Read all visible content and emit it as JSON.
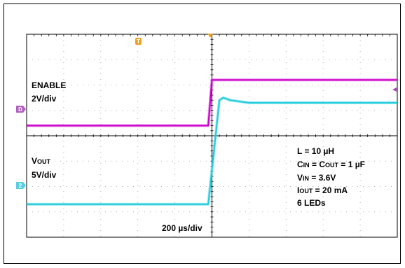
{
  "chart_data": {
    "type": "line",
    "title": "",
    "timebase": "200 µs/div",
    "divisions": {
      "x": 10,
      "y": 8
    },
    "xlim": [
      -1000,
      1000
    ],
    "x_unit": "µs",
    "trigger_marker": "T",
    "channel_markers": {
      "enable": "D",
      "vout": "2"
    },
    "series": [
      {
        "label": "ENABLE",
        "scale": "2V/div",
        "color": "#CC00CC",
        "x": [
          -1000,
          -20,
          0,
          1000
        ],
        "y": [
          0,
          0,
          3.6,
          3.6
        ],
        "v_per_div": 2,
        "ground_div": 3.6
      },
      {
        "label_main": "V",
        "label_sub": "OUT",
        "scale": "5V/div",
        "color": "#22CCDD",
        "x": [
          -1000,
          -20,
          40,
          60,
          100,
          200,
          400,
          1000
        ],
        "y": [
          0,
          0,
          20.5,
          21.0,
          20.5,
          20.0,
          20.0,
          20.0
        ],
        "v_per_div": 5,
        "ground_div": 6.7
      }
    ],
    "annotations": [
      {
        "main": "L = 10 µH"
      },
      {
        "main": "C",
        "sub": "IN",
        "main2": " = C",
        "sub2": "OUT",
        "main3": " = 1 µF"
      },
      {
        "main": "V",
        "sub": "IN",
        "main2": " = 3.6V"
      },
      {
        "main": "I",
        "sub": "OUT",
        "main2": " = 20 mA"
      },
      {
        "main": "6 LEDs"
      }
    ],
    "grid": true
  }
}
